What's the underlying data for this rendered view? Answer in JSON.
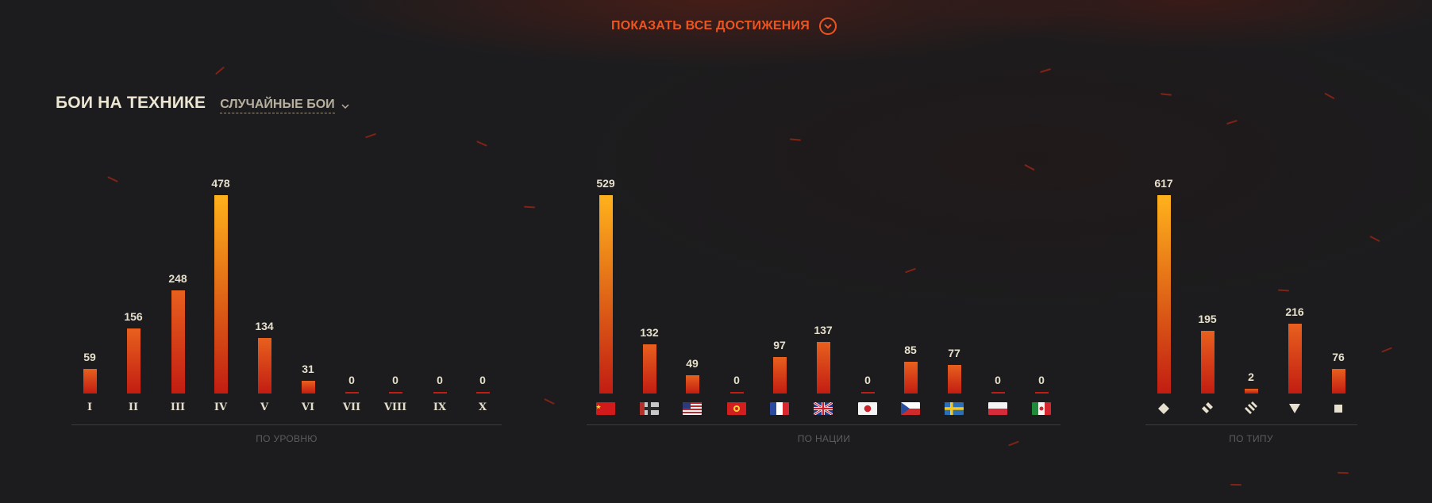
{
  "show_all": {
    "label": "ПОКАЗАТЬ ВСЕ ДОСТИЖЕНИЯ",
    "icon": "chevron-down-circle-icon"
  },
  "section": {
    "title": "БОИ НА ТЕХНИКЕ",
    "mode_label": "СЛУЧАЙНЫЕ БОИ",
    "mode_icon": "chevron-down-icon"
  },
  "colors": {
    "accent": "#f0541e",
    "bar_top_max": "#ffb21c",
    "bar_top": "#e8601e",
    "bar_bottom": "#c21d12"
  },
  "chart_data": [
    {
      "type": "bar",
      "xlabel": "ПО УРОВНЮ",
      "categories": [
        "I",
        "II",
        "III",
        "IV",
        "V",
        "VI",
        "VII",
        "VIII",
        "IX",
        "X"
      ],
      "values": [
        59,
        156,
        248,
        478,
        134,
        31,
        0,
        0,
        0,
        0
      ],
      "data_labels": [
        "59",
        "156",
        "248",
        "478",
        "134",
        "31",
        "0",
        "0",
        "0",
        "0"
      ]
    },
    {
      "type": "bar",
      "xlabel": "ПО НАЦИИ",
      "categories": [
        "ussr-flag",
        "germany-flag",
        "usa-flag",
        "china-flag",
        "france-flag",
        "uk-flag",
        "japan-flag",
        "czech-flag",
        "sweden-flag",
        "poland-flag",
        "italy-flag"
      ],
      "values": [
        529,
        132,
        49,
        0,
        97,
        137,
        0,
        85,
        77,
        0,
        0
      ],
      "data_labels": [
        "529",
        "132",
        "49",
        "0",
        "97",
        "137",
        "0",
        "85",
        "77",
        "0",
        "0"
      ]
    },
    {
      "type": "bar",
      "xlabel": "ПО ТИПУ",
      "categories": [
        "light-tank-icon",
        "medium-tank-icon",
        "heavy-tank-icon",
        "tank-destroyer-icon",
        "spg-icon"
      ],
      "values": [
        617,
        195,
        2,
        216,
        76
      ],
      "data_labels": [
        "617",
        "195",
        "2",
        "216",
        "76"
      ]
    }
  ]
}
